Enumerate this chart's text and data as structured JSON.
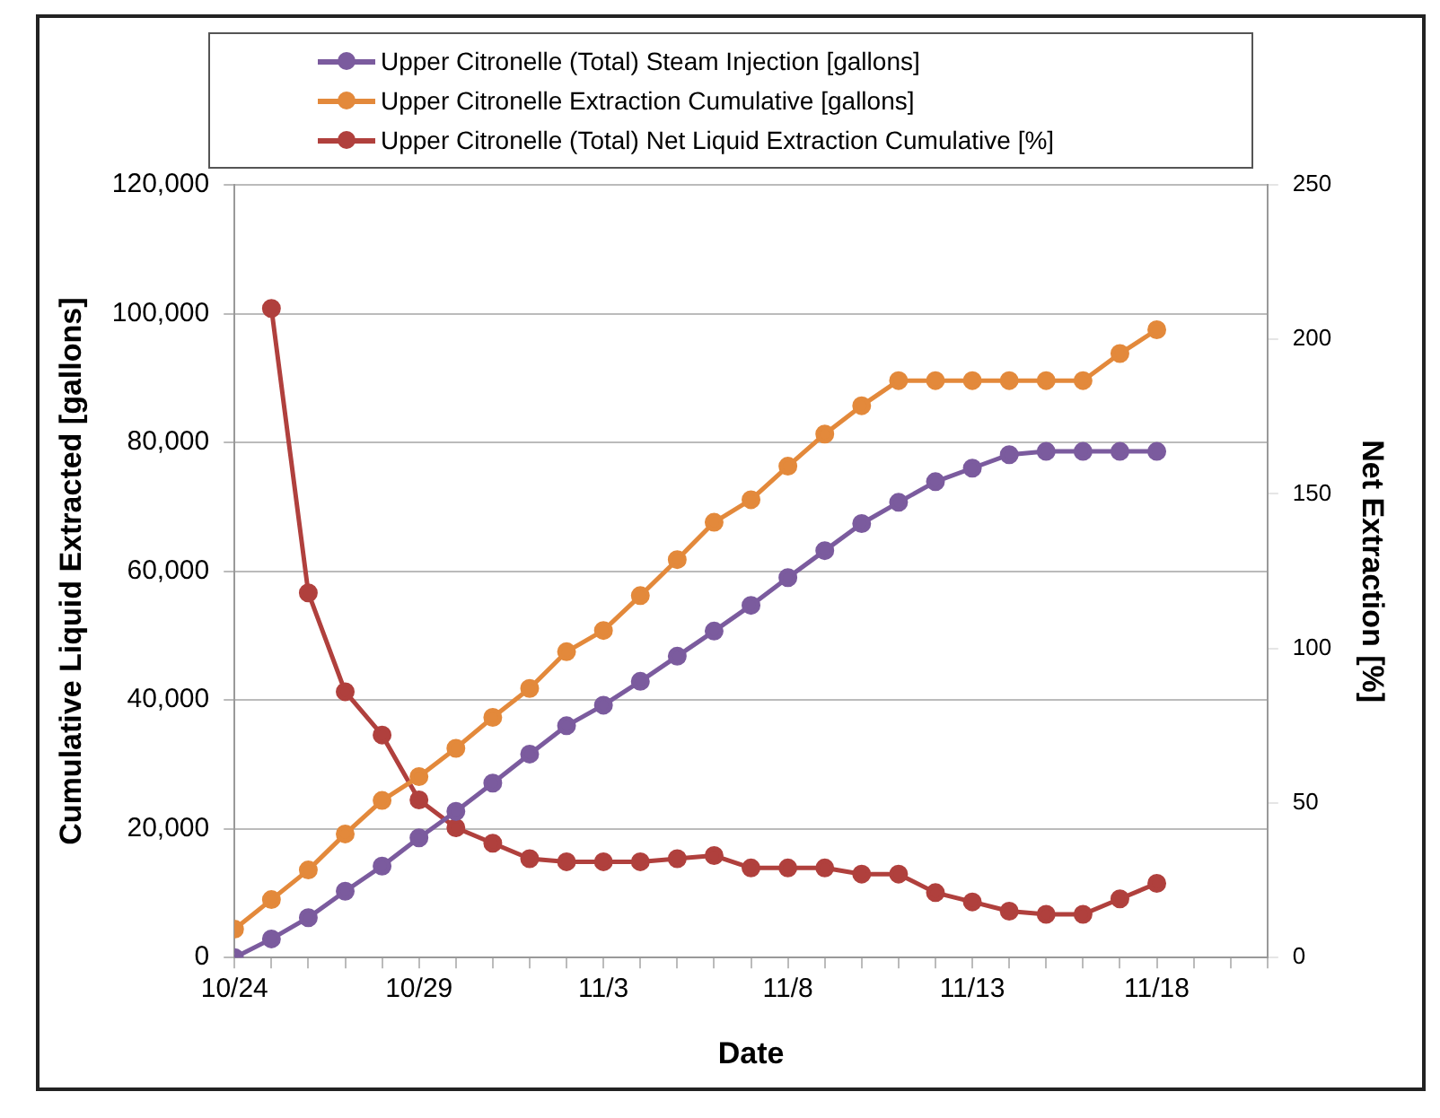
{
  "chart_data": {
    "type": "line",
    "xlabel": "Date",
    "ylabel": "Cumulative Liquid Extracted [gallons]",
    "y2label": "Net Extraction [%]",
    "x": [
      "--10-24",
      "--10-25",
      "--10-26",
      "--10-27",
      "--10-28",
      "--10-29",
      "--10-30",
      "--10-31",
      "--11-01",
      "--11-02",
      "--11-03",
      "--11-04",
      "--11-05",
      "--11-06",
      "--11-07",
      "--11-08",
      "--11-09",
      "--11-10",
      "--11-11",
      "--11-12",
      "--11-13",
      "--11-14",
      "--11-15",
      "--11-16",
      "--11-17",
      "--11-18"
    ],
    "series": [
      {
        "name": "Upper Citronelle (Total) Steam Injection [gallons]",
        "color": "#7b5b9e",
        "values": [
          0,
          2900,
          6200,
          10300,
          14200,
          18600,
          22700,
          27100,
          31600,
          36000,
          39200,
          42900,
          46800,
          50700,
          54700,
          59000,
          63200,
          67400,
          70700,
          73900,
          76000,
          78100,
          78600,
          78600,
          78600,
          78600
        ]
      },
      {
        "name": "Upper Citronelle Extraction Cumulative [gallons]",
        "color": "#e3893b",
        "values": [
          4400,
          9000,
          13600,
          19200,
          24400,
          28100,
          32500,
          37300,
          41800,
          47500,
          50800,
          56200,
          61800,
          67600,
          71100,
          76300,
          81300,
          85700,
          89600,
          89600,
          89600,
          89600,
          89600,
          89600,
          93800,
          97500
        ]
      },
      {
        "name": "Upper Citronelle (Total) Net Liquid Extraction Cumulative [%]",
        "color": "#b0403d",
        "axis": "y2",
        "values": [
          null,
          210,
          118,
          86,
          72,
          51,
          42,
          37,
          32,
          31,
          31,
          31,
          32,
          33,
          29,
          29,
          29,
          27,
          27,
          21,
          18,
          15,
          14,
          14,
          19,
          24
        ]
      }
    ],
    "xlim": [
      "--10-24",
      "--11-21"
    ],
    "xticks": [
      {
        "value": "--10-24",
        "label": "10/24"
      },
      {
        "value": "--10-25",
        "label": null
      },
      {
        "value": "--10-26",
        "label": null
      },
      {
        "value": "--10-27",
        "label": null
      },
      {
        "value": "--10-28",
        "label": null
      },
      {
        "value": "--10-29",
        "label": "10/29"
      },
      {
        "value": "--10-30",
        "label": null
      },
      {
        "value": "--10-31",
        "label": null
      },
      {
        "value": "--11-01",
        "label": null
      },
      {
        "value": "--11-02",
        "label": null
      },
      {
        "value": "--11-03",
        "label": "11/3"
      },
      {
        "value": "--11-04",
        "label": null
      },
      {
        "value": "--11-05",
        "label": null
      },
      {
        "value": "--11-06",
        "label": null
      },
      {
        "value": "--11-07",
        "label": null
      },
      {
        "value": "--11-08",
        "label": "11/8"
      },
      {
        "value": "--11-09",
        "label": null
      },
      {
        "value": "--11-10",
        "label": null
      },
      {
        "value": "--11-11",
        "label": null
      },
      {
        "value": "--11-12",
        "label": null
      },
      {
        "value": "--11-13",
        "label": "11/13"
      },
      {
        "value": "--11-14",
        "label": null
      },
      {
        "value": "--11-15",
        "label": null
      },
      {
        "value": "--11-16",
        "label": null
      },
      {
        "value": "--11-17",
        "label": null
      },
      {
        "value": "--11-18",
        "label": "11/18"
      },
      {
        "value": "--11-19",
        "label": null
      },
      {
        "value": "--11-20",
        "label": null
      },
      {
        "value": "--11-21",
        "label": null
      }
    ],
    "ylim": [
      0,
      120000
    ],
    "yticks": [
      0,
      {
        "value": 20000,
        "label": "20,000"
      },
      {
        "value": 40000,
        "label": "40,000"
      },
      {
        "value": 60000,
        "label": "60,000"
      },
      {
        "value": 80000,
        "label": "80,000"
      },
      {
        "value": 100000,
        "label": "100,000"
      },
      {
        "value": 120000,
        "label": "120,000"
      }
    ],
    "y2lim": [
      0,
      250
    ],
    "y2ticks": [
      0,
      50,
      100,
      150,
      200,
      250
    ],
    "grid": "y",
    "legend": "top",
    "marker": "circle",
    "line_style": "solid"
  }
}
